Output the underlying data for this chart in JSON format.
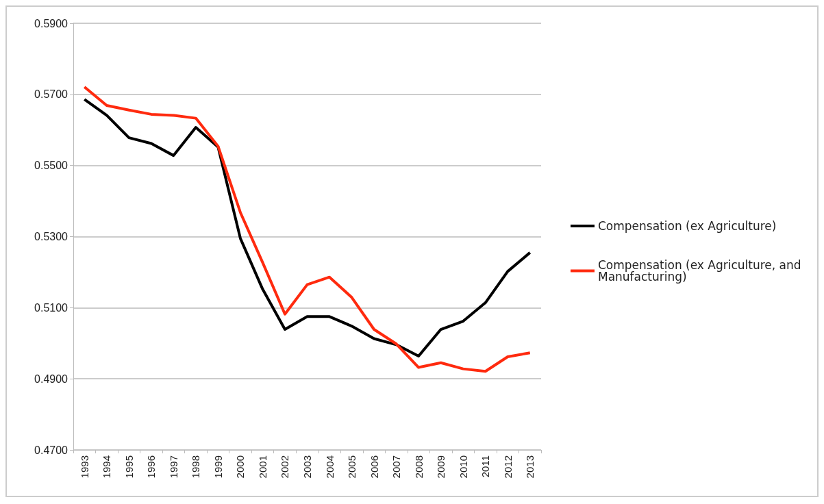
{
  "chart_data": {
    "type": "line",
    "categories": [
      "1993",
      "1994",
      "1995",
      "1996",
      "1997",
      "1998",
      "1999",
      "2000",
      "2001",
      "2002",
      "2003",
      "2004",
      "2005",
      "2006",
      "2007",
      "2008",
      "2009",
      "2010",
      "2011",
      "2012",
      "2013"
    ],
    "series": [
      {
        "name": "Compensation (ex Agriculture)",
        "color": "#000000",
        "values": [
          0.5686,
          0.5641,
          0.5578,
          0.5562,
          0.5528,
          0.5607,
          0.5552,
          0.5295,
          0.5152,
          0.5039,
          0.5075,
          0.5075,
          0.5048,
          0.5013,
          0.4996,
          0.4964,
          0.5039,
          0.5062,
          0.5114,
          0.5202,
          0.5255
        ]
      },
      {
        "name": "Compensation (ex Agriculture, and Manufacturing)",
        "color": "#ff2a0e",
        "values": [
          0.5721,
          0.5669,
          0.5656,
          0.5644,
          0.5641,
          0.5633,
          0.5554,
          0.5368,
          0.5227,
          0.5082,
          0.5165,
          0.5186,
          0.5129,
          0.5039,
          0.4998,
          0.4932,
          0.4945,
          0.4928,
          0.4921,
          0.4962,
          0.4973
        ]
      }
    ],
    "ylim": [
      0.47,
      0.59
    ],
    "yticks": [
      {
        "value": 0.47,
        "label": "0.4700"
      },
      {
        "value": 0.49,
        "label": "0.4900"
      },
      {
        "value": 0.51,
        "label": "0.5100"
      },
      {
        "value": 0.53,
        "label": "0.5300"
      },
      {
        "value": 0.55,
        "label": "0.5500"
      },
      {
        "value": 0.57,
        "label": "0.5700"
      },
      {
        "value": 0.59,
        "label": "0.5900"
      }
    ],
    "grid": "y",
    "legend": "right",
    "marker": "none",
    "line_style": "solid"
  }
}
